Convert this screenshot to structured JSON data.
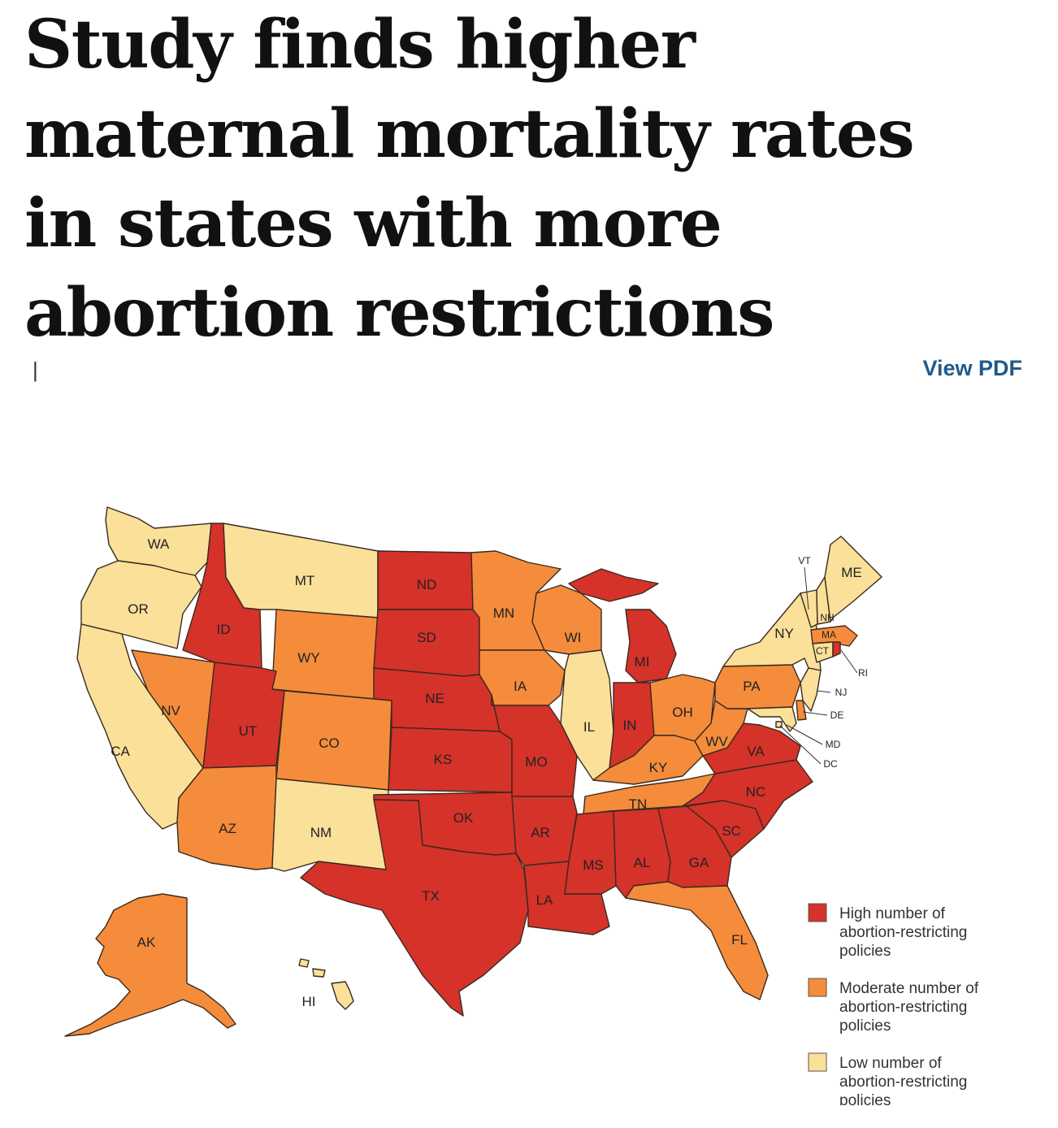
{
  "article": {
    "headline_lines": [
      "Study finds higher",
      "maternal mortality rates",
      "in states with more",
      "abortion restrictions"
    ],
    "separator": "|",
    "view_pdf_label": "View PDF"
  },
  "map": {
    "colors": {
      "high": "#d5322a",
      "moderate": "#f58c3b",
      "low": "#fbe09a"
    },
    "legend": [
      {
        "key": "high",
        "lines": [
          "High number of",
          "abortion-restricting",
          "policies"
        ]
      },
      {
        "key": "moderate",
        "lines": [
          "Moderate number of",
          "abortion-restricting",
          "policies"
        ]
      },
      {
        "key": "low",
        "lines": [
          "Low number of",
          "abortion-restricting",
          "policies"
        ]
      }
    ],
    "states": {
      "WA": "low",
      "OR": "low",
      "CA": "low",
      "NV": "moderate",
      "ID": "high",
      "MT": "low",
      "WY": "moderate",
      "UT": "high",
      "CO": "moderate",
      "AZ": "moderate",
      "NM": "low",
      "ND": "high",
      "SD": "high",
      "NE": "high",
      "KS": "high",
      "OK": "high",
      "TX": "high",
      "MN": "moderate",
      "IA": "moderate",
      "MO": "high",
      "AR": "high",
      "LA": "high",
      "WI": "moderate",
      "IL": "low",
      "MI": "high",
      "IN": "high",
      "OH": "moderate",
      "KY": "moderate",
      "TN": "moderate",
      "MS": "high",
      "AL": "high",
      "GA": "high",
      "FL": "moderate",
      "SC": "high",
      "NC": "high",
      "VA": "high",
      "WV": "moderate",
      "PA": "moderate",
      "NY": "low",
      "VT": "low",
      "NH": "low",
      "ME": "low",
      "MA": "moderate",
      "CT": "low",
      "RI": "high",
      "NJ": "low",
      "DE": "moderate",
      "MD": "low",
      "DC": "low",
      "AK": "moderate",
      "HI": "low"
    }
  }
}
